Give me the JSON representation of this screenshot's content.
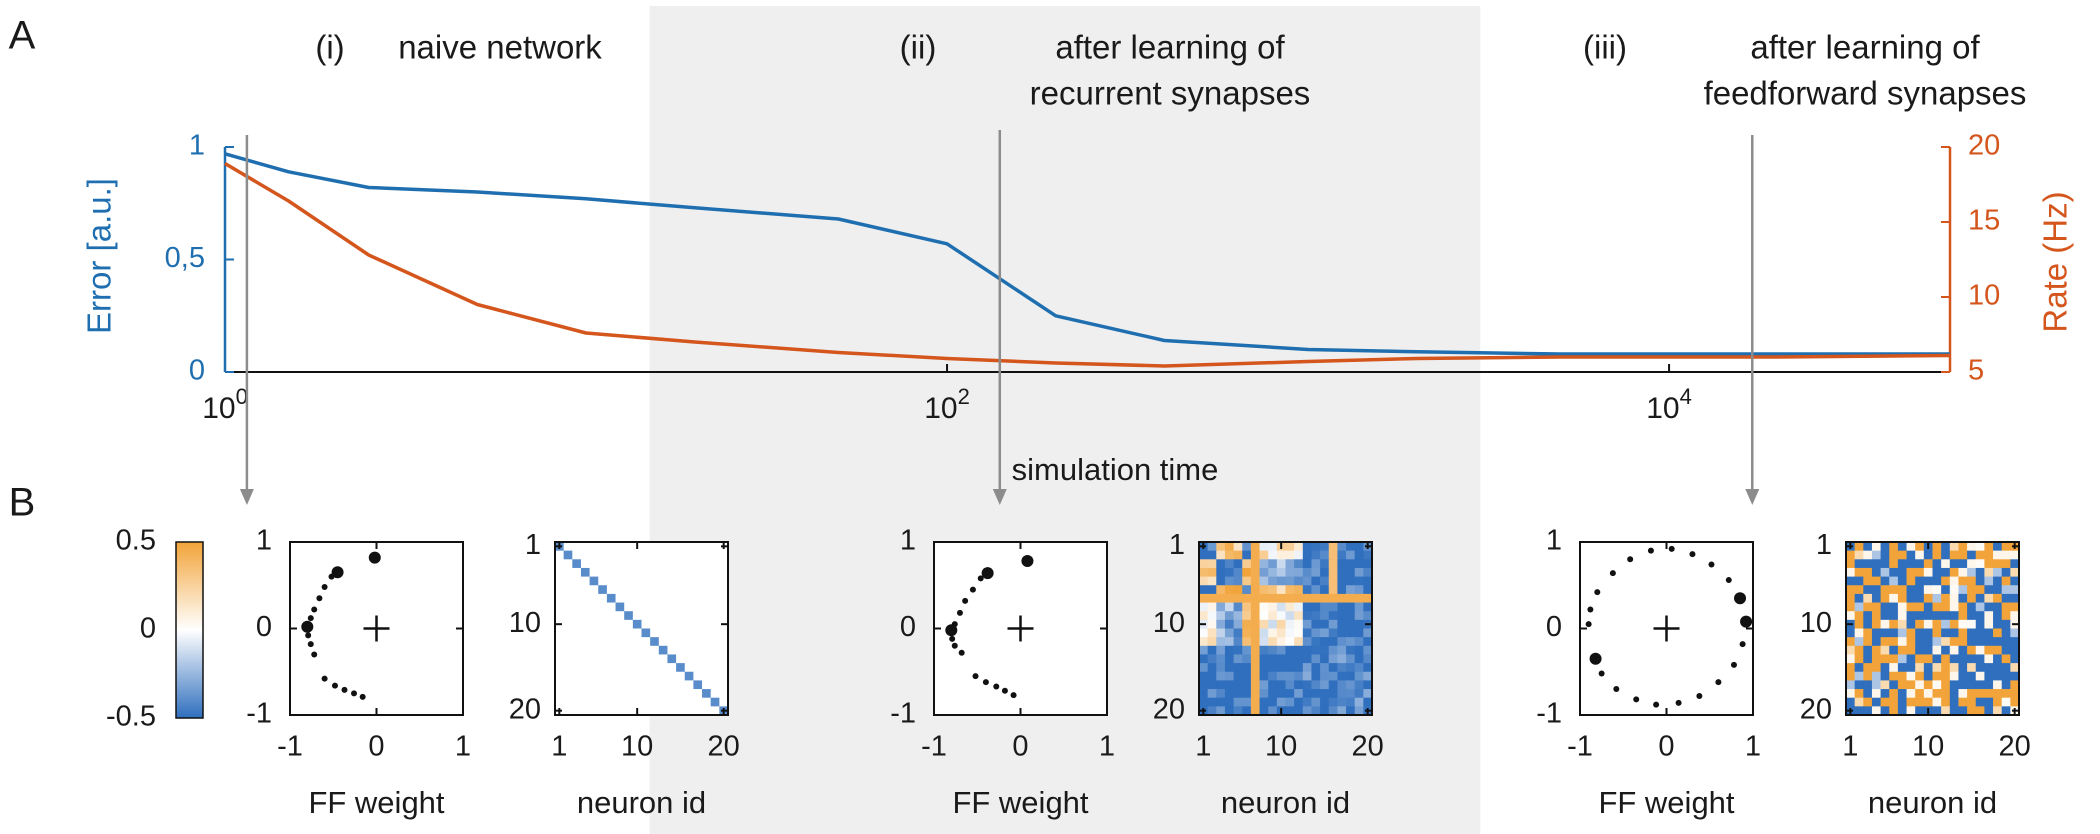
{
  "panel_labels": {
    "a": "A",
    "b": "B"
  },
  "colors": {
    "error": "#1f6fb0",
    "rate": "#d4561d",
    "shade": "#efefef",
    "arrow": "#8c8c8c",
    "cmap_neg": "#2f6fbe",
    "cmap_mid": "#ffffff",
    "cmap_pos": "#f2a43a"
  },
  "stages": [
    {
      "id": "i",
      "numeral": "(i)",
      "lines": [
        "naive network"
      ]
    },
    {
      "id": "ii",
      "numeral": "(ii)",
      "lines": [
        "after learning of",
        "recurrent synapses"
      ]
    },
    {
      "id": "iii",
      "numeral": "(iii)",
      "lines": [
        "after learning of",
        "feedforward synapses"
      ]
    }
  ],
  "chart_data": [
    {
      "type": "line",
      "x_scale": "log",
      "xlabel": "simulation time",
      "xlim": [
        1,
        60000
      ],
      "x_ticks": [
        {
          "base": "10",
          "exp": "0",
          "value": 1
        },
        {
          "base": "10",
          "exp": "2",
          "value": 100
        },
        {
          "base": "10",
          "exp": "4",
          "value": 10000
        }
      ],
      "shaded_x_range": [
        15,
        3000
      ],
      "arrow_x": [
        1.15,
        140,
        17000
      ],
      "y_left": {
        "label": "Error [a.u.]",
        "lim": [
          0,
          1
        ],
        "ticks": [
          {
            "v": 0,
            "t": "0"
          },
          {
            "v": 0.5,
            "t": "0,5"
          },
          {
            "v": 1,
            "t": "1"
          }
        ]
      },
      "y_right": {
        "label": "Rate (Hz)",
        "lim": [
          5,
          20
        ],
        "ticks": [
          {
            "v": 5,
            "t": "5"
          },
          {
            "v": 10,
            "t": "10"
          },
          {
            "v": 15,
            "t": "15"
          },
          {
            "v": 20,
            "t": "20"
          }
        ]
      },
      "series": [
        {
          "axis": "left",
          "color_key": "error",
          "x": [
            1,
            1.5,
            2.5,
            5,
            10,
            20,
            50,
            100,
            200,
            400,
            1000,
            2000,
            5000,
            20000,
            60000
          ],
          "y": [
            0.97,
            0.89,
            0.82,
            0.8,
            0.77,
            0.73,
            0.68,
            0.57,
            0.25,
            0.14,
            0.1,
            0.09,
            0.08,
            0.08,
            0.08
          ]
        },
        {
          "axis": "right",
          "color_key": "rate",
          "x": [
            1,
            1.5,
            2.5,
            5,
            10,
            20,
            50,
            100,
            200,
            400,
            1000,
            2000,
            5000,
            20000,
            60000
          ],
          "y": [
            18.9,
            16.4,
            12.8,
            9.5,
            7.6,
            7.0,
            6.3,
            5.9,
            5.6,
            5.4,
            5.7,
            5.9,
            6.0,
            6.0,
            6.1
          ]
        }
      ]
    },
    {
      "type": "heatmap",
      "colorbar": {
        "lim": [
          -0.5,
          0.5
        ],
        "ticks": [
          {
            "v": 0.5,
            "t": "0.5"
          },
          {
            "v": 0,
            "t": "0"
          },
          {
            "v": -0.5,
            "t": "-0.5"
          }
        ]
      }
    },
    {
      "type": "scatter",
      "stage": "i",
      "xlabel": "FF weight",
      "xlim": [
        -1,
        1
      ],
      "ylim": [
        -1,
        1
      ],
      "x_ticks": [
        {
          "v": -1,
          "t": "-1"
        },
        {
          "v": 0,
          "t": "0"
        },
        {
          "v": 1,
          "t": "1"
        }
      ],
      "y_ticks": [
        {
          "v": 1,
          "t": "1"
        },
        {
          "v": 0,
          "t": "0"
        },
        {
          "v": -1,
          "t": "-1"
        }
      ],
      "points": [
        [
          -0.02,
          0.82,
          2
        ],
        [
          -0.45,
          0.65,
          2
        ],
        [
          -0.52,
          0.6,
          1
        ],
        [
          -0.6,
          0.48,
          1
        ],
        [
          -0.66,
          0.35,
          1
        ],
        [
          -0.72,
          0.22,
          1
        ],
        [
          -0.76,
          0.12,
          1
        ],
        [
          -0.8,
          0.02,
          2
        ],
        [
          -0.79,
          -0.08,
          1
        ],
        [
          -0.76,
          -0.18,
          1
        ],
        [
          -0.72,
          -0.3,
          1
        ],
        [
          -0.6,
          -0.58,
          1
        ],
        [
          -0.48,
          -0.66,
          1
        ],
        [
          -0.37,
          -0.71,
          1
        ],
        [
          -0.26,
          -0.75,
          1
        ],
        [
          -0.16,
          -0.79,
          1
        ]
      ]
    },
    {
      "type": "heatmap",
      "stage": "i",
      "xlabel": "neuron id",
      "n": 20,
      "x_ticks": [
        {
          "v": 1,
          "t": "1"
        },
        {
          "v": 10,
          "t": "10"
        },
        {
          "v": 20,
          "t": "20"
        }
      ],
      "y_ticks": [
        {
          "v": 1,
          "t": "1"
        },
        {
          "v": 10,
          "t": "10"
        },
        {
          "v": 20,
          "t": "20"
        }
      ],
      "pattern": "diagonal",
      "diag_value": -0.4
    },
    {
      "type": "scatter",
      "stage": "ii",
      "xlabel": "FF weight",
      "xlim": [
        -1,
        1
      ],
      "ylim": [
        -1,
        1
      ],
      "x_ticks": [
        {
          "v": -1,
          "t": "-1"
        },
        {
          "v": 0,
          "t": "0"
        },
        {
          "v": 1,
          "t": "1"
        }
      ],
      "y_ticks": [
        {
          "v": 1,
          "t": "1"
        },
        {
          "v": 0,
          "t": "0"
        },
        {
          "v": -1,
          "t": "-1"
        }
      ],
      "points": [
        [
          0.08,
          0.78,
          2
        ],
        [
          -0.38,
          0.64,
          2
        ],
        [
          -0.46,
          0.58,
          1
        ],
        [
          -0.55,
          0.45,
          1
        ],
        [
          -0.64,
          0.32,
          1
        ],
        [
          -0.7,
          0.18,
          1
        ],
        [
          -0.76,
          0.05,
          1
        ],
        [
          -0.8,
          -0.02,
          2
        ],
        [
          -0.79,
          -0.12,
          1
        ],
        [
          -0.76,
          -0.2,
          1
        ],
        [
          -0.68,
          -0.28,
          1
        ],
        [
          -0.52,
          -0.55,
          1
        ],
        [
          -0.4,
          -0.62,
          1
        ],
        [
          -0.28,
          -0.67,
          1
        ],
        [
          -0.18,
          -0.72,
          1
        ],
        [
          -0.08,
          -0.77,
          1
        ]
      ]
    },
    {
      "type": "heatmap",
      "stage": "ii",
      "xlabel": "neuron id",
      "n": 20,
      "x_ticks": [
        {
          "v": 1,
          "t": "1"
        },
        {
          "v": 10,
          "t": "10"
        },
        {
          "v": 20,
          "t": "20"
        }
      ],
      "y_ticks": [
        {
          "v": 1,
          "t": "1"
        },
        {
          "v": 10,
          "t": "10"
        },
        {
          "v": 20,
          "t": "20"
        }
      ],
      "pattern": "block_recurrent",
      "seed": 7
    },
    {
      "type": "scatter",
      "stage": "iii",
      "xlabel": "FF weight",
      "xlim": [
        -1,
        1
      ],
      "ylim": [
        -1,
        1
      ],
      "x_ticks": [
        {
          "v": -1,
          "t": "-1"
        },
        {
          "v": 0,
          "t": "0"
        },
        {
          "v": 1,
          "t": "1"
        }
      ],
      "y_ticks": [
        {
          "v": 1,
          "t": "1"
        },
        {
          "v": 0,
          "t": "0"
        },
        {
          "v": -1,
          "t": "-1"
        }
      ],
      "points": [
        [
          0.85,
          0.35,
          2
        ],
        [
          0.92,
          0.08,
          2
        ],
        [
          -0.82,
          -0.35,
          2
        ],
        [
          -0.9,
          0.05,
          1
        ],
        [
          -0.88,
          0.22,
          1
        ],
        [
          -0.8,
          0.42,
          1
        ],
        [
          -0.62,
          0.64,
          1
        ],
        [
          -0.42,
          0.8,
          1
        ],
        [
          -0.18,
          0.9,
          1
        ],
        [
          0.06,
          0.92,
          1
        ],
        [
          0.3,
          0.86,
          1
        ],
        [
          0.52,
          0.74,
          1
        ],
        [
          0.72,
          0.56,
          1
        ],
        [
          0.88,
          -0.18,
          1
        ],
        [
          0.78,
          -0.42,
          1
        ],
        [
          0.6,
          -0.62,
          1
        ],
        [
          0.38,
          -0.78,
          1
        ],
        [
          0.14,
          -0.86,
          1
        ],
        [
          -0.12,
          -0.88,
          1
        ],
        [
          -0.35,
          -0.82,
          1
        ],
        [
          -0.58,
          -0.7,
          1
        ],
        [
          -0.75,
          -0.52,
          1
        ]
      ]
    },
    {
      "type": "heatmap",
      "stage": "iii",
      "xlabel": "neuron id",
      "n": 20,
      "x_ticks": [
        {
          "v": 1,
          "t": "1"
        },
        {
          "v": 10,
          "t": "10"
        },
        {
          "v": 20,
          "t": "20"
        }
      ],
      "y_ticks": [
        {
          "v": 1,
          "t": "1"
        },
        {
          "v": 10,
          "t": "10"
        },
        {
          "v": 20,
          "t": "20"
        }
      ],
      "pattern": "block_ff",
      "seed": 13
    }
  ]
}
